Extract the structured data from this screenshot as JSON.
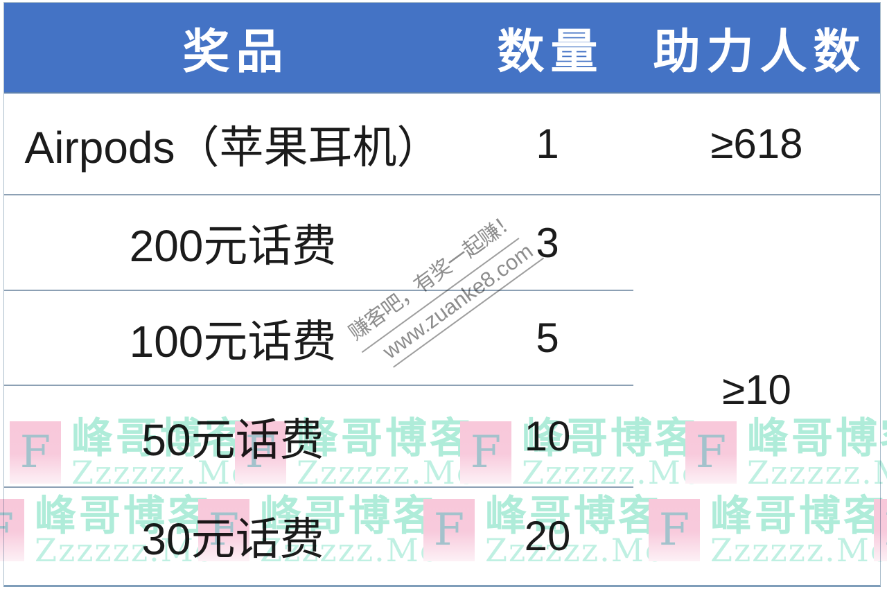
{
  "table": {
    "headers": [
      "奖品",
      "数量",
      "助力人数"
    ],
    "rows": [
      {
        "prize": "Airpods（苹果耳机）",
        "quantity": "1",
        "helpers": "≥618"
      },
      {
        "prize": "200元话费",
        "quantity": "3"
      },
      {
        "prize": "100元话费",
        "quantity": "5"
      },
      {
        "prize": "50元话费",
        "quantity": "10"
      },
      {
        "prize": "30元话费",
        "quantity": "20"
      }
    ],
    "merged_helpers": "≥10"
  },
  "watermarks": {
    "diagonal": {
      "line1": "赚客吧，有奖一起赚！",
      "line2": "www.zuanke8.com"
    },
    "corner": {
      "letter": "F",
      "site_name": "峰哥博客",
      "site_domain": "Zzzzzz.Me"
    }
  },
  "colors": {
    "header_bg": "#4473C5",
    "header_text": "#FFFFFF",
    "header_edge": "#5D80AE",
    "row_border": "#8CA0B4",
    "frame_border": "#A9BCCB",
    "frame_bottom_border": "#7E9DB9",
    "text_color": "#1B1B1B",
    "wm_pink": "#F8C8DA",
    "wm_f": "#A3C2CC",
    "wm_mint": "#AFECD9",
    "wm_mint_light": "#BFF0E2",
    "wm_gray": "#8D8D8D"
  }
}
